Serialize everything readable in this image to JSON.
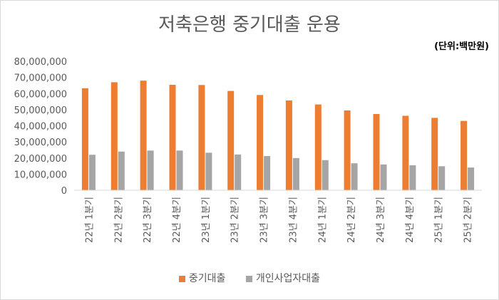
{
  "chart_data": {
    "type": "bar",
    "title": "저축은행 중기대출 운용",
    "unit_note": "(단위:백만원)",
    "categories": [
      "22년 1분기",
      "22년 2분기",
      "22년 3분기",
      "22년 4분기",
      "23년 1분기",
      "23년 2분기",
      "23년 3분기",
      "23년 4분기",
      "24년 1분기",
      "24년 2분기",
      "24년 3분기",
      "24년 4분기",
      "25년 1분기",
      "25년 2분기"
    ],
    "series": [
      {
        "name": "중기대출",
        "color": "#ed7d31",
        "values": [
          63300000,
          67000000,
          68000000,
          65400000,
          65300000,
          61600000,
          59100000,
          55700000,
          53200000,
          49500000,
          47300000,
          46200000,
          44900000,
          43000000
        ]
      },
      {
        "name": "개인사업자대출",
        "color": "#a5a5a5",
        "values": [
          22000000,
          24000000,
          24600000,
          24600000,
          23300000,
          22200000,
          21200000,
          20000000,
          18700000,
          16700000,
          16000000,
          15500000,
          14900000,
          14100000
        ]
      }
    ],
    "ylim": [
      0,
      80000000
    ],
    "yticks": [
      0,
      10000000,
      20000000,
      30000000,
      40000000,
      50000000,
      60000000,
      70000000,
      80000000
    ],
    "ytick_labels": [
      "0",
      "10,000,000",
      "20,000,000",
      "30,000,000",
      "40,000,000",
      "50,000,000",
      "60,000,000",
      "70,000,000",
      "80,000,000"
    ],
    "grid": false,
    "legend_position": "bottom"
  }
}
